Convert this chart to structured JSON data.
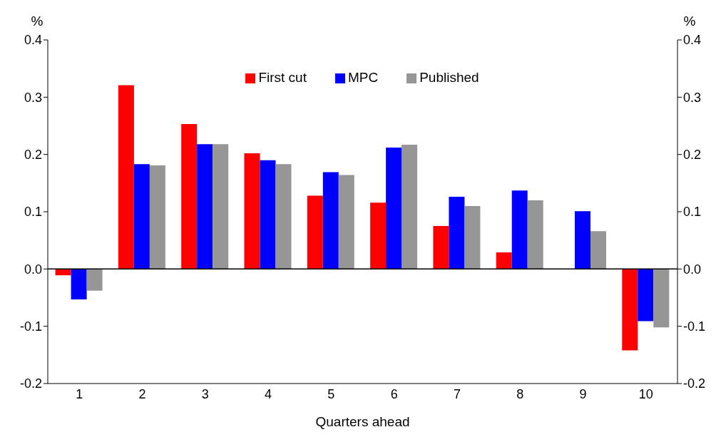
{
  "chart_data": {
    "type": "bar",
    "xlabel": "Quarters ahead",
    "ylabel": "%",
    "y2label": "%",
    "categories": [
      "1",
      "2",
      "3",
      "4",
      "5",
      "6",
      "7",
      "8",
      "9",
      "10"
    ],
    "series": [
      {
        "name": "First cut",
        "color": "#ff0000",
        "values": [
          -0.011,
          0.321,
          0.253,
          0.202,
          0.128,
          0.116,
          0.075,
          0.029,
          null,
          -0.142
        ]
      },
      {
        "name": "MPC",
        "color": "#0000ff",
        "values": [
          -0.053,
          0.183,
          0.218,
          0.19,
          0.169,
          0.212,
          0.126,
          0.137,
          0.101,
          -0.091
        ]
      },
      {
        "name": "Published",
        "color": "#969696",
        "values": [
          -0.038,
          0.181,
          0.218,
          0.183,
          0.164,
          0.217,
          0.11,
          0.12,
          0.066,
          -0.102
        ]
      }
    ],
    "ylim": [
      -0.2,
      0.4
    ],
    "yticks": [
      -0.2,
      -0.1,
      {
        "value": 0,
        "label": "0.0"
      },
      0.1,
      0.2,
      0.3,
      0.4
    ],
    "y2lim": [
      -0.2,
      0.4
    ],
    "y2ticks": [
      -0.2,
      -0.1,
      {
        "value": 0,
        "label": "0.0"
      },
      0.1,
      0.2,
      0.3,
      0.4
    ],
    "ref_lines": [
      {
        "axis": "y",
        "value": 0,
        "color": "#000000"
      }
    ],
    "grid": false,
    "legend": "top"
  }
}
